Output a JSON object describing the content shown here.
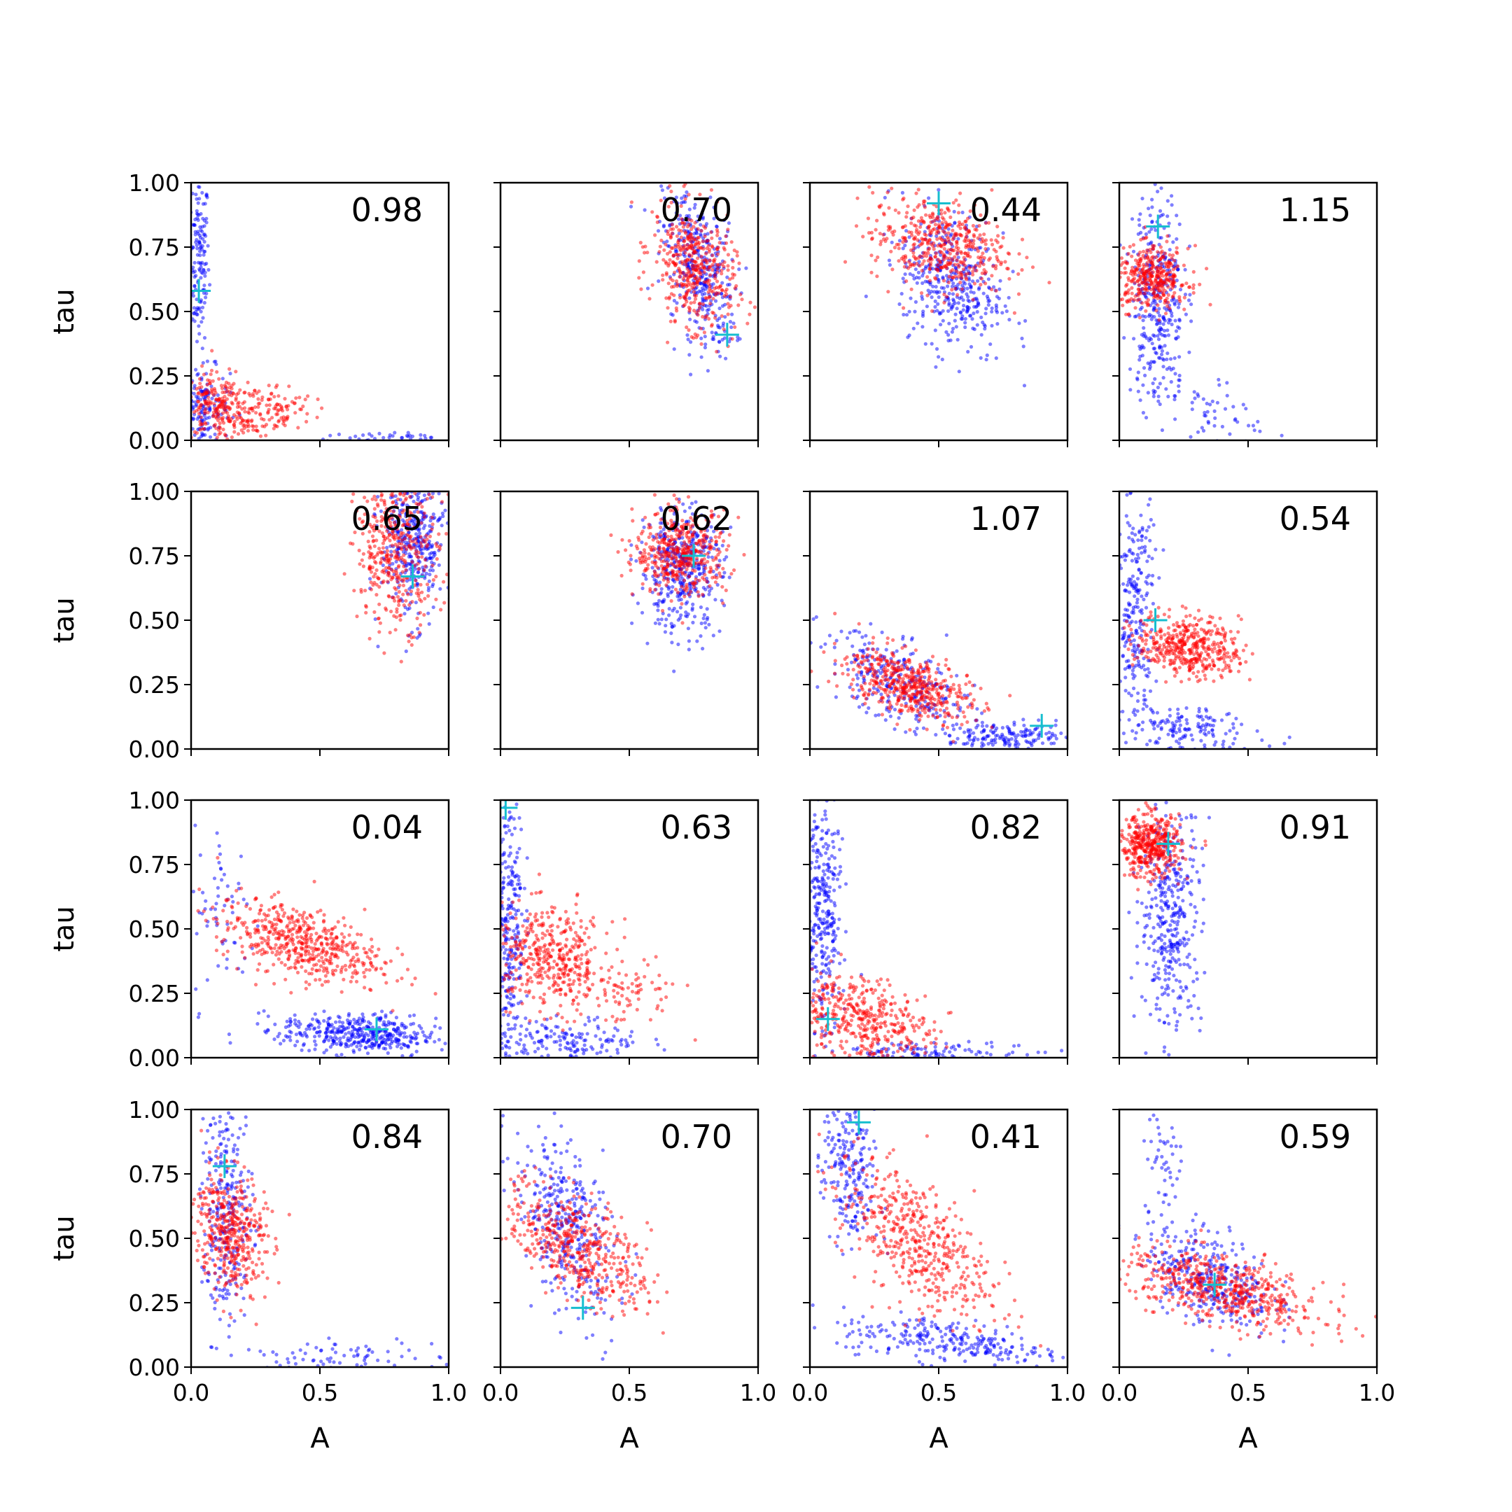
{
  "chart_data": {
    "type": "scatter",
    "layout": {
      "rows": 4,
      "cols": 4
    },
    "xlabel": "A",
    "ylabel": "tau",
    "xlim": [
      0.0,
      1.0
    ],
    "ylim": [
      0.0,
      1.0
    ],
    "xticks": [
      "0.0",
      "0.5",
      "1.0"
    ],
    "yticks": [
      "0.00",
      "0.25",
      "0.50",
      "0.75",
      "1.00"
    ],
    "colors": {
      "series_blue": "#0000ff",
      "series_red": "#ff0000",
      "marker": "#17becf",
      "axes": "#000000"
    },
    "marker_symbol": "+",
    "grid": false,
    "panels": [
      {
        "label": "0.98",
        "marker": [
          0.03,
          0.58
        ],
        "red": [
          {
            "c": [
              0.12,
              0.12
            ],
            "s": [
              0.09,
              0.07
            ],
            "n": 280,
            "r": -0.3
          },
          {
            "c": [
              0.34,
              0.12
            ],
            "s": [
              0.07,
              0.05
            ],
            "n": 90,
            "r": 0
          }
        ],
        "blue": [
          {
            "c": [
              0.03,
              0.7
            ],
            "s": [
              0.02,
              0.17
            ],
            "n": 150,
            "r": 0
          },
          {
            "c": [
              0.05,
              0.12
            ],
            "s": [
              0.05,
              0.08
            ],
            "n": 160,
            "r": 0
          },
          {
            "c": [
              0.75,
              0.01
            ],
            "s": [
              0.15,
              0.01
            ],
            "n": 40,
            "r": 0
          }
        ]
      },
      {
        "label": "0.70",
        "marker": [
          0.88,
          0.41
        ],
        "red": [
          {
            "c": [
              0.75,
              0.67
            ],
            "s": [
              0.08,
              0.12
            ],
            "n": 420,
            "r": -0.3
          }
        ],
        "blue": [
          {
            "c": [
              0.77,
              0.66
            ],
            "s": [
              0.07,
              0.15
            ],
            "n": 360,
            "r": -0.4
          }
        ]
      },
      {
        "label": "0.44",
        "marker": [
          0.5,
          0.92
        ],
        "red": [
          {
            "c": [
              0.5,
              0.76
            ],
            "s": [
              0.13,
              0.09
            ],
            "n": 460,
            "r": -0.2
          }
        ],
        "blue": [
          {
            "c": [
              0.55,
              0.62
            ],
            "s": [
              0.1,
              0.14
            ],
            "n": 400,
            "r": -0.3
          }
        ]
      },
      {
        "label": "1.15",
        "marker": [
          0.15,
          0.83
        ],
        "red": [
          {
            "c": [
              0.13,
              0.63
            ],
            "s": [
              0.07,
              0.06
            ],
            "n": 360,
            "r": 0
          }
        ],
        "blue": [
          {
            "c": [
              0.15,
              0.58
            ],
            "s": [
              0.05,
              0.2
            ],
            "n": 320,
            "r": 0
          },
          {
            "c": [
              0.3,
              0.13
            ],
            "s": [
              0.14,
              0.09
            ],
            "n": 80,
            "r": -0.6
          }
        ]
      },
      {
        "label": "0.65",
        "marker": [
          0.86,
          0.67
        ],
        "red": [
          {
            "c": [
              0.8,
              0.78
            ],
            "s": [
              0.08,
              0.15
            ],
            "n": 420,
            "r": 0
          }
        ],
        "blue": [
          {
            "c": [
              0.86,
              0.8
            ],
            "s": [
              0.06,
              0.15
            ],
            "n": 380,
            "r": 0
          }
        ]
      },
      {
        "label": "0.62",
        "marker": [
          0.75,
          0.75
        ],
        "red": [
          {
            "c": [
              0.7,
              0.76
            ],
            "s": [
              0.09,
              0.08
            ],
            "n": 440,
            "r": 0
          }
        ],
        "blue": [
          {
            "c": [
              0.7,
              0.7
            ],
            "s": [
              0.08,
              0.12
            ],
            "n": 420,
            "r": 0
          }
        ]
      },
      {
        "label": "1.07",
        "marker": [
          0.9,
          0.09
        ],
        "red": [
          {
            "c": [
              0.38,
              0.25
            ],
            "s": [
              0.12,
              0.07
            ],
            "n": 480,
            "r": -0.5
          }
        ],
        "blue": [
          {
            "c": [
              0.35,
              0.25
            ],
            "s": [
              0.15,
              0.1
            ],
            "n": 280,
            "r": -0.6
          },
          {
            "c": [
              0.78,
              0.05
            ],
            "s": [
              0.12,
              0.025
            ],
            "n": 160,
            "r": 0
          }
        ]
      },
      {
        "label": "0.54",
        "marker": [
          0.14,
          0.5
        ],
        "red": [
          {
            "c": [
              0.27,
              0.4
            ],
            "s": [
              0.1,
              0.06
            ],
            "n": 440,
            "r": -0.2
          }
        ],
        "blue": [
          {
            "c": [
              0.06,
              0.55
            ],
            "s": [
              0.04,
              0.25
            ],
            "n": 260,
            "r": 0
          },
          {
            "c": [
              0.25,
              0.07
            ],
            "s": [
              0.15,
              0.05
            ],
            "n": 160,
            "r": -0.3
          }
        ]
      },
      {
        "label": "0.04",
        "marker": [
          0.72,
          0.11
        ],
        "red": [
          {
            "c": [
              0.42,
              0.45
            ],
            "s": [
              0.16,
              0.08
            ],
            "n": 520,
            "r": -0.5
          }
        ],
        "blue": [
          {
            "c": [
              0.65,
              0.09
            ],
            "s": [
              0.15,
              0.04
            ],
            "n": 420,
            "r": -0.2
          },
          {
            "c": [
              0.13,
              0.55
            ],
            "s": [
              0.06,
              0.18
            ],
            "n": 60,
            "r": 0
          }
        ]
      },
      {
        "label": "0.63",
        "marker": [
          0.02,
          0.97
        ],
        "red": [
          {
            "c": [
              0.2,
              0.38
            ],
            "s": [
              0.12,
              0.1
            ],
            "n": 440,
            "r": -0.2
          },
          {
            "c": [
              0.5,
              0.25
            ],
            "s": [
              0.1,
              0.06
            ],
            "n": 60,
            "r": 0
          }
        ],
        "blue": [
          {
            "c": [
              0.03,
              0.55
            ],
            "s": [
              0.03,
              0.26
            ],
            "n": 280,
            "r": 0
          },
          {
            "c": [
              0.25,
              0.06
            ],
            "s": [
              0.15,
              0.05
            ],
            "n": 170,
            "r": 0
          }
        ]
      },
      {
        "label": "0.82",
        "marker": [
          0.07,
          0.15
        ],
        "red": [
          {
            "c": [
              0.2,
              0.15
            ],
            "s": [
              0.14,
              0.09
            ],
            "n": 440,
            "r": -0.4
          }
        ],
        "blue": [
          {
            "c": [
              0.05,
              0.55
            ],
            "s": [
              0.035,
              0.25
            ],
            "n": 320,
            "r": 0
          },
          {
            "c": [
              0.5,
              0.02
            ],
            "s": [
              0.2,
              0.02
            ],
            "n": 120,
            "r": 0
          }
        ]
      },
      {
        "label": "0.91",
        "marker": [
          0.19,
          0.83
        ],
        "red": [
          {
            "c": [
              0.12,
              0.82
            ],
            "s": [
              0.06,
              0.06
            ],
            "n": 440,
            "r": 0
          }
        ],
        "blue": [
          {
            "c": [
              0.2,
              0.55
            ],
            "s": [
              0.06,
              0.22
            ],
            "n": 380,
            "r": 0
          }
        ]
      },
      {
        "label": "0.84",
        "marker": [
          0.13,
          0.78
        ],
        "red": [
          {
            "c": [
              0.15,
              0.53
            ],
            "s": [
              0.07,
              0.12
            ],
            "n": 420,
            "r": -0.2
          }
        ],
        "blue": [
          {
            "c": [
              0.14,
              0.6
            ],
            "s": [
              0.05,
              0.22
            ],
            "n": 280,
            "r": 0
          },
          {
            "c": [
              0.55,
              0.04
            ],
            "s": [
              0.2,
              0.03
            ],
            "n": 80,
            "r": 0
          }
        ]
      },
      {
        "label": "0.70",
        "marker": [
          0.32,
          0.23
        ],
        "red": [
          {
            "c": [
              0.3,
              0.47
            ],
            "s": [
              0.14,
              0.12
            ],
            "n": 480,
            "r": -0.6
          }
        ],
        "blue": [
          {
            "c": [
              0.25,
              0.55
            ],
            "s": [
              0.1,
              0.18
            ],
            "n": 360,
            "r": -0.5
          }
        ]
      },
      {
        "label": "0.41",
        "marker": [
          0.19,
          0.95
        ],
        "red": [
          {
            "c": [
              0.4,
              0.5
            ],
            "s": [
              0.15,
              0.15
            ],
            "n": 480,
            "r": -0.6
          }
        ],
        "blue": [
          {
            "c": [
              0.15,
              0.75
            ],
            "s": [
              0.05,
              0.16
            ],
            "n": 220,
            "r": -0.2
          },
          {
            "c": [
              0.55,
              0.1
            ],
            "s": [
              0.22,
              0.05
            ],
            "n": 260,
            "r": -0.5
          }
        ]
      },
      {
        "label": "0.59",
        "marker": [
          0.37,
          0.32
        ],
        "red": [
          {
            "c": [
              0.4,
              0.3
            ],
            "s": [
              0.2,
              0.08
            ],
            "n": 560,
            "r": -0.6
          }
        ],
        "blue": [
          {
            "c": [
              0.35,
              0.35
            ],
            "s": [
              0.12,
              0.1
            ],
            "n": 340,
            "r": -0.4
          },
          {
            "c": [
              0.17,
              0.8
            ],
            "s": [
              0.04,
              0.12
            ],
            "n": 50,
            "r": 0
          }
        ]
      }
    ]
  }
}
